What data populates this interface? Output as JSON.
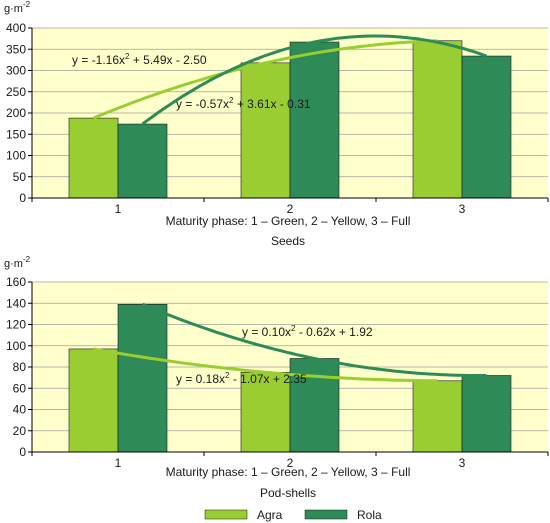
{
  "colors": {
    "agra": "#9acd32",
    "rola": "#2e8b57",
    "plot_background": "#ffffcc",
    "grid": "#a0a0a0",
    "axis": "#000000"
  },
  "chart_data": [
    {
      "type": "bar",
      "title": "Seeds",
      "xlabel": "Maturity phase: 1 – Green, 2 – Yellow, 3 – Full",
      "ylabel": "g·m-2",
      "categories": [
        "1",
        "2",
        "3"
      ],
      "ylim": [
        0,
        400
      ],
      "yticks": [
        0,
        50,
        100,
        150,
        200,
        250,
        300,
        350,
        400
      ],
      "grid": true,
      "series": [
        {
          "name": "Agra",
          "values": [
            188,
            318,
            370
          ]
        },
        {
          "name": "Rola",
          "values": [
            174,
            367,
            334
          ]
        }
      ],
      "trendlines": [
        {
          "series": "Agra",
          "equation": "y = -0.57x2 + 3.61x - 0.31",
          "coefficients": [
            -0.57,
            3.61,
            -0.31
          ]
        },
        {
          "series": "Rola",
          "equation": "y = -1.16x2 + 5.49x - 2.50",
          "coefficients": [
            -1.16,
            5.49,
            -2.5
          ]
        }
      ]
    },
    {
      "type": "bar",
      "title": "Pod-shells",
      "xlabel": "Maturity phase: 1 – Green, 2 – Yellow, 3 – Full",
      "ylabel": "g·m-2",
      "categories": [
        "1",
        "2",
        "3"
      ],
      "ylim": [
        0,
        160
      ],
      "yticks": [
        0,
        20,
        40,
        60,
        80,
        100,
        120,
        140,
        160
      ],
      "grid": true,
      "series": [
        {
          "name": "Agra",
          "values": [
            97,
            75,
            67
          ]
        },
        {
          "name": "Rola",
          "values": [
            139,
            88,
            72
          ]
        }
      ],
      "trendlines": [
        {
          "series": "Agra",
          "equation": "y = 0.18x2 - 1.07x + 2.35",
          "coefficients": [
            0.18,
            -1.07,
            2.35
          ]
        },
        {
          "series": "Rola",
          "equation": "y = 0.10x2 - 0.62x + 1.92",
          "coefficients": [
            0.1,
            -0.62,
            1.92
          ]
        }
      ]
    }
  ],
  "legend": {
    "position": "bottom-center",
    "items": [
      "Agra",
      "Rola"
    ]
  }
}
